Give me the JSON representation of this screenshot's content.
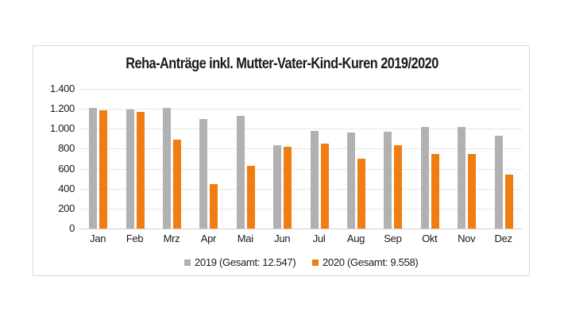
{
  "chart_data": {
    "type": "bar",
    "title": "Reha-Anträge inkl. Mutter-Vater-Kind-Kuren 2019/2020",
    "xlabel": "",
    "ylabel": "",
    "ylim": [
      0,
      1400
    ],
    "yticks": [
      "0",
      "200",
      "400",
      "600",
      "800",
      "1.000",
      "1.200",
      "1.400"
    ],
    "grid": true,
    "legend_position": "bottom",
    "categories": [
      "Jan",
      "Feb",
      "Mrz",
      "Apr",
      "Mai",
      "Jun",
      "Jul",
      "Aug",
      "Sep",
      "Okt",
      "Nov",
      "Dez"
    ],
    "series": [
      {
        "name": "2019 (Gesamt: 12.547)",
        "color": "#b1b1b1",
        "values": [
          1207,
          1190,
          1210,
          1100,
          1128,
          835,
          980,
          960,
          970,
          1015,
          1020,
          932
        ]
      },
      {
        "name": "2020 (Gesamt: 9.558)",
        "color": "#ef7d12",
        "values": [
          1183,
          1167,
          893,
          448,
          626,
          820,
          854,
          700,
          833,
          750,
          745,
          539
        ]
      }
    ]
  }
}
